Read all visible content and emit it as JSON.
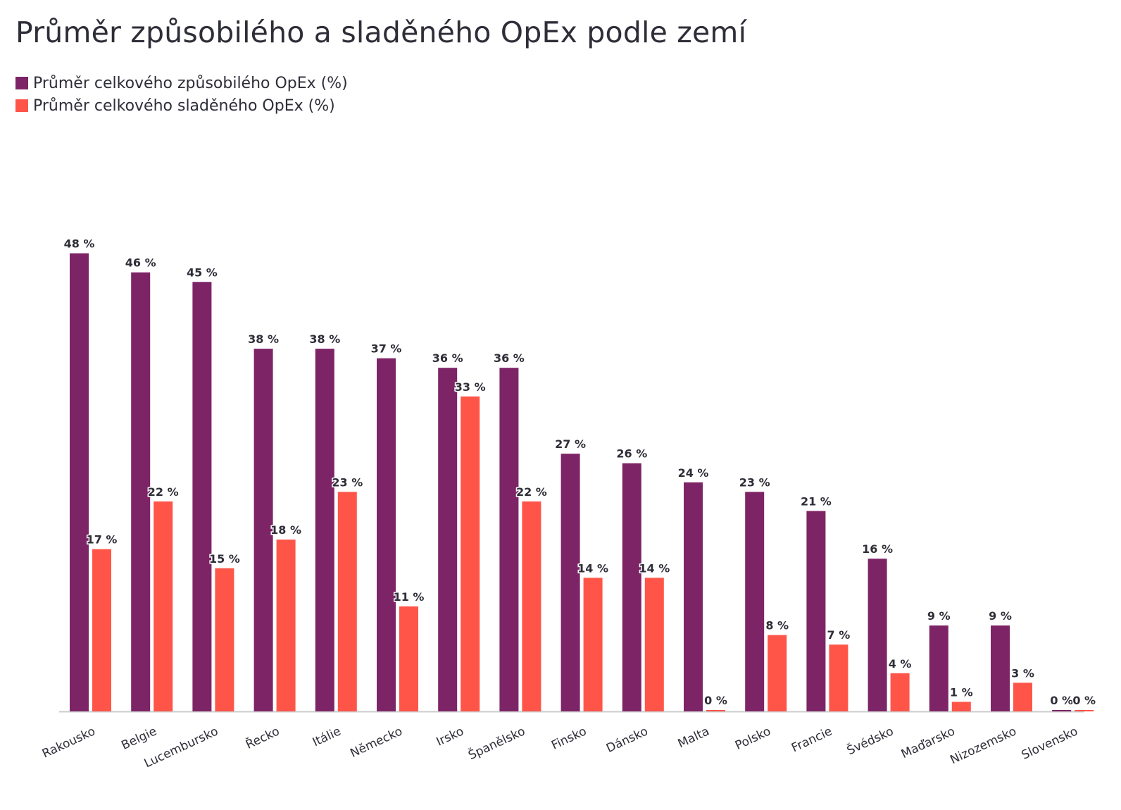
{
  "title": "Průměr způsobilého a sladěného OpEx podle zemí",
  "colors": {
    "eligible": "#7d2466",
    "aligned": "#ff5549",
    "axis": "#cccccc"
  },
  "chart_data": {
    "type": "bar",
    "categories": [
      "Rakousko",
      "Belgie",
      "Lucembursko",
      "Řecko",
      "Itálie",
      "Německo",
      "Irsko",
      "Španělsko",
      "Finsko",
      "Dánsko",
      "Malta",
      "Polsko",
      "Francie",
      "Švédsko",
      "Maďarsko",
      "Nizozemsko",
      "Slovensko"
    ],
    "series": [
      {
        "name": "Průměr celkového způsobilého OpEx (%)",
        "values": [
          48,
          46,
          45,
          38,
          38,
          37,
          36,
          36,
          27,
          26,
          24,
          23,
          21,
          16,
          9,
          9,
          0
        ],
        "color": "#7d2466"
      },
      {
        "name": "Průměr celkového sladěného OpEx (%)",
        "values": [
          17,
          22,
          15,
          18,
          23,
          11,
          33,
          22,
          14,
          14,
          0,
          8,
          7,
          4,
          1,
          3,
          0
        ],
        "color": "#ff5549"
      }
    ],
    "value_suffix": " %",
    "ylim": [
      0,
      48
    ],
    "legend_position": "top-left",
    "grid": false
  }
}
